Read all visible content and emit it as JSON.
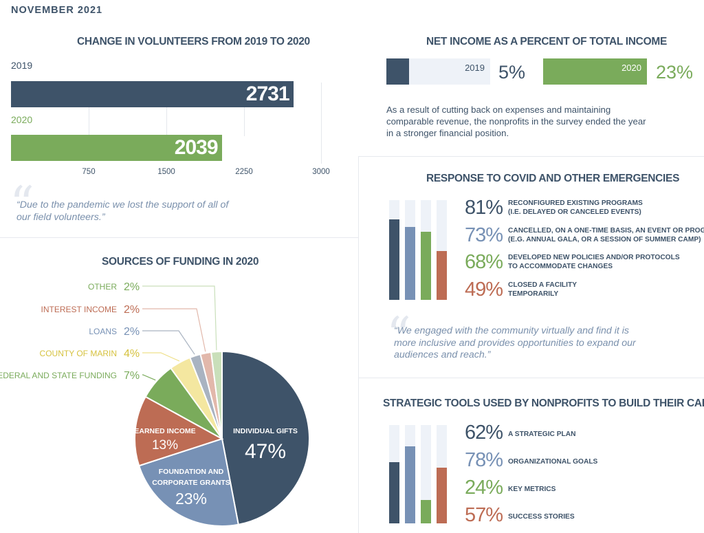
{
  "header": {
    "month": "NOVEMBER 2021"
  },
  "colors": {
    "navy": "#3e5369",
    "blue": "#7791b5",
    "green": "#7aab5b",
    "rust": "#bd6c54",
    "yellow": "#f4e7a0",
    "grey": "#a9b3c1",
    "pink": "#e2b8ab",
    "lightgreen": "#c9dfba",
    "track": "#eef2f8"
  },
  "volunteers": {
    "title": "CHANGE IN VOLUNTEERS FROM 2019 TO 2020",
    "quote": "“Due to the pandemic we lost the support of all of our field volunteers.”"
  },
  "net_income": {
    "title": "NET INCOME AS A PERCENT OF TOTAL INCOME",
    "body": "As a result of cutting back on expenses and maintaining comparable revenue, the nonprofits in the survey ended the year in a stronger financial position."
  },
  "response": {
    "title": "RESPONSE TO COVID AND OTHER EMERGENCIES",
    "quote": "“We engaged with the community virtually and find it is more inclusive and provides opportunities to expand our audiences and reach.”"
  },
  "strategic": {
    "title": "STRATEGIC TOOLS USED BY NONPROFITS TO BUILD THEIR CAPACITY"
  },
  "funding": {
    "title": "SOURCES OF FUNDING IN 2020"
  },
  "chart_data": [
    {
      "type": "bar",
      "orientation": "horizontal",
      "title": "CHANGE IN VOLUNTEERS FROM 2019 TO 2020",
      "categories": [
        "2019",
        "2020"
      ],
      "values": [
        2731,
        2039
      ],
      "value_labels": [
        "2731",
        "2039"
      ],
      "colors": [
        "#3e5369",
        "#7aab5b"
      ],
      "xlim": [
        0,
        3000
      ],
      "xticks": [
        "750",
        "1500",
        "2250",
        "3000"
      ],
      "grid": true
    },
    {
      "type": "bar",
      "orientation": "horizontal",
      "title": "NET INCOME AS A PERCENT OF TOTAL INCOME",
      "categories": [
        "2019",
        "2020"
      ],
      "values": [
        5,
        23
      ],
      "value_labels": [
        "5%",
        "23%"
      ],
      "colors": [
        "#3e5369",
        "#7aab5b"
      ]
    },
    {
      "type": "bar",
      "orientation": "vertical",
      "title": "RESPONSE TO COVID AND OTHER EMERGENCIES",
      "categories": [
        "RECONFIGURED EXISTING PROGRAMS (I.E. DELAYED OR CANCELED EVENTS)",
        "CANCELLED, ON A ONE-TIME BASIS, AN EVENT OR PROGRAM (E.G. ANNUAL GALA, OR A SESSION OF SUMMER CAMP)",
        "DEVELOPED NEW POLICIES AND/OR PROTOCOLS TO ACCOMMODATE CHANGES",
        "CLOSED A FACILITY TEMPORARILY"
      ],
      "label_lines": [
        [
          "RECONFIGURED EXISTING PROGRAMS",
          "(I.E. DELAYED OR CANCELED EVENTS)"
        ],
        [
          "CANCELLED, ON A ONE-TIME BASIS, AN EVENT OR PROGRAM",
          "(E.G. ANNUAL GALA, OR A SESSION OF SUMMER CAMP)"
        ],
        [
          "DEVELOPED NEW POLICIES AND/OR PROTOCOLS",
          "TO ACCOMMODATE CHANGES"
        ],
        [
          "CLOSED A FACILITY",
          "TEMPORARILY"
        ]
      ],
      "values": [
        81,
        73,
        68,
        49
      ],
      "value_labels": [
        "81%",
        "73%",
        "68%",
        "49%"
      ],
      "colors": [
        "#3e5369",
        "#7791b5",
        "#7aab5b",
        "#bd6c54"
      ],
      "ylim": [
        0,
        100
      ]
    },
    {
      "type": "bar",
      "orientation": "vertical",
      "title": "STRATEGIC TOOLS USED BY NONPROFITS TO BUILD THEIR CAPACITY",
      "categories": [
        "A STRATEGIC PLAN",
        "ORGANIZATIONAL GOALS",
        "KEY METRICS",
        "SUCCESS STORIES"
      ],
      "values": [
        62,
        78,
        24,
        57
      ],
      "value_labels": [
        "62%",
        "78%",
        "24%",
        "57%"
      ],
      "colors": [
        "#3e5369",
        "#7791b5",
        "#7aab5b",
        "#bd6c54"
      ],
      "ylim": [
        0,
        100
      ]
    },
    {
      "type": "pie",
      "title": "SOURCES OF FUNDING IN 2020",
      "slices": [
        {
          "label": "INDIVIDUAL GIFTS",
          "value": 47,
          "pct_label": "47%",
          "color": "#3e5369"
        },
        {
          "label": "FOUNDATION AND CORPORATE GRANTS",
          "value": 23,
          "pct_label": "23%",
          "color": "#7791b5"
        },
        {
          "label": "EARNED INCOME",
          "value": 13,
          "pct_label": "13%",
          "color": "#bd6c54"
        },
        {
          "label": "FEDERAL AND STATE FUNDING",
          "value": 7,
          "pct_label": "7%",
          "color": "#7aab5b"
        },
        {
          "label": "COUNTY OF MARIN",
          "value": 4,
          "pct_label": "4%",
          "color": "#f4e7a0"
        },
        {
          "label": "LOANS",
          "value": 2,
          "pct_label": "2%",
          "color": "#a9b3c1"
        },
        {
          "label": "INTEREST INCOME",
          "value": 2,
          "pct_label": "2%",
          "color": "#e2b8ab"
        },
        {
          "label": "OTHER",
          "value": 2,
          "pct_label": "2%",
          "color": "#c9dfba"
        }
      ]
    }
  ]
}
